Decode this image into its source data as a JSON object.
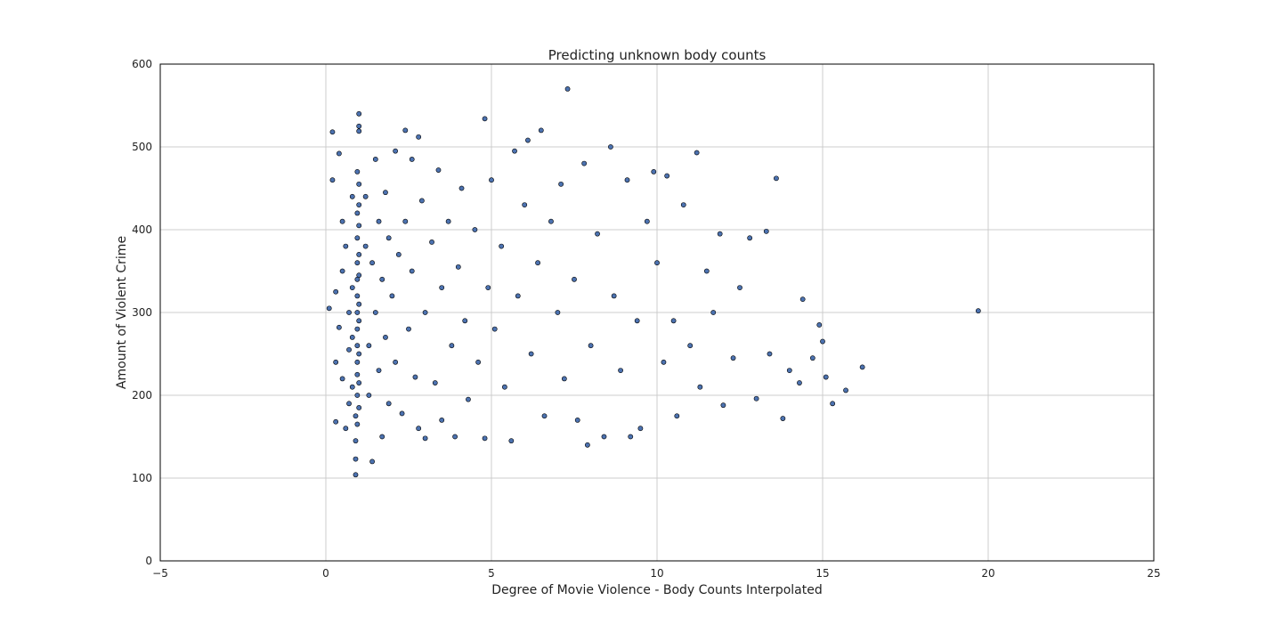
{
  "chart_data": {
    "type": "scatter",
    "title": "Predicting unknown body counts",
    "xlabel": "Degree of Movie Violence - Body Counts Interpolated",
    "ylabel": "Amount of Violent Crime",
    "xlim": [
      -5,
      25
    ],
    "ylim": [
      0,
      600
    ],
    "xticks": [
      -5,
      0,
      5,
      10,
      15,
      20,
      25
    ],
    "xtick_labels": [
      "−5",
      "0",
      "5",
      "10",
      "15",
      "20",
      "25"
    ],
    "yticks": [
      0,
      100,
      200,
      300,
      400,
      500,
      600
    ],
    "ytick_labels": [
      "0",
      "100",
      "200",
      "300",
      "400",
      "500",
      "600"
    ],
    "grid": true,
    "marker_color": "#4c72b0",
    "series": [
      {
        "points": [
          [
            0.1,
            305
          ],
          [
            0.2,
            518
          ],
          [
            0.2,
            460
          ],
          [
            0.3,
            240
          ],
          [
            0.3,
            325
          ],
          [
            0.3,
            168
          ],
          [
            0.4,
            492
          ],
          [
            0.4,
            282
          ],
          [
            0.5,
            410
          ],
          [
            0.5,
            350
          ],
          [
            0.5,
            220
          ],
          [
            0.6,
            160
          ],
          [
            0.6,
            380
          ],
          [
            0.7,
            300
          ],
          [
            0.7,
            255
          ],
          [
            0.7,
            190
          ],
          [
            0.8,
            440
          ],
          [
            0.8,
            330
          ],
          [
            0.8,
            270
          ],
          [
            0.8,
            210
          ],
          [
            0.9,
            175
          ],
          [
            0.9,
            145
          ],
          [
            0.9,
            123
          ],
          [
            0.9,
            104
          ],
          [
            0.95,
            470
          ],
          [
            0.95,
            420
          ],
          [
            0.95,
            390
          ],
          [
            0.95,
            360
          ],
          [
            0.95,
            340
          ],
          [
            0.95,
            320
          ],
          [
            0.95,
            300
          ],
          [
            0.95,
            280
          ],
          [
            0.95,
            260
          ],
          [
            0.95,
            240
          ],
          [
            0.95,
            225
          ],
          [
            0.95,
            200
          ],
          [
            0.95,
            165
          ],
          [
            1.0,
            540
          ],
          [
            1.0,
            525
          ],
          [
            1.0,
            519
          ],
          [
            1.0,
            455
          ],
          [
            1.0,
            430
          ],
          [
            1.0,
            405
          ],
          [
            1.0,
            370
          ],
          [
            1.0,
            345
          ],
          [
            1.0,
            310
          ],
          [
            1.0,
            290
          ],
          [
            1.0,
            250
          ],
          [
            1.0,
            215
          ],
          [
            1.0,
            185
          ],
          [
            1.2,
            440
          ],
          [
            1.2,
            380
          ],
          [
            1.3,
            260
          ],
          [
            1.3,
            200
          ],
          [
            1.4,
            360
          ],
          [
            1.4,
            120
          ],
          [
            1.5,
            485
          ],
          [
            1.5,
            300
          ],
          [
            1.6,
            410
          ],
          [
            1.6,
            230
          ],
          [
            1.7,
            340
          ],
          [
            1.7,
            150
          ],
          [
            1.8,
            445
          ],
          [
            1.8,
            270
          ],
          [
            1.9,
            390
          ],
          [
            1.9,
            190
          ],
          [
            2.0,
            320
          ],
          [
            2.1,
            495
          ],
          [
            2.1,
            240
          ],
          [
            2.2,
            370
          ],
          [
            2.3,
            178
          ],
          [
            2.4,
            520
          ],
          [
            2.4,
            410
          ],
          [
            2.5,
            280
          ],
          [
            2.6,
            485
          ],
          [
            2.6,
            350
          ],
          [
            2.7,
            222
          ],
          [
            2.8,
            512
          ],
          [
            2.8,
            160
          ],
          [
            2.9,
            435
          ],
          [
            3.0,
            300
          ],
          [
            3.0,
            148
          ],
          [
            3.2,
            385
          ],
          [
            3.3,
            215
          ],
          [
            3.4,
            472
          ],
          [
            3.5,
            330
          ],
          [
            3.5,
            170
          ],
          [
            3.7,
            410
          ],
          [
            3.8,
            260
          ],
          [
            3.9,
            150
          ],
          [
            4.0,
            355
          ],
          [
            4.1,
            450
          ],
          [
            4.2,
            290
          ],
          [
            4.3,
            195
          ],
          [
            4.5,
            400
          ],
          [
            4.6,
            240
          ],
          [
            4.8,
            534
          ],
          [
            4.8,
            148
          ],
          [
            4.9,
            330
          ],
          [
            5.0,
            460
          ],
          [
            5.1,
            280
          ],
          [
            5.3,
            380
          ],
          [
            5.4,
            210
          ],
          [
            5.6,
            145
          ],
          [
            5.7,
            495
          ],
          [
            5.8,
            320
          ],
          [
            6.0,
            430
          ],
          [
            6.1,
            508
          ],
          [
            6.2,
            250
          ],
          [
            6.4,
            360
          ],
          [
            6.5,
            520
          ],
          [
            6.6,
            175
          ],
          [
            6.8,
            410
          ],
          [
            7.0,
            300
          ],
          [
            7.1,
            455
          ],
          [
            7.2,
            220
          ],
          [
            7.3,
            570
          ],
          [
            7.5,
            340
          ],
          [
            7.6,
            170
          ],
          [
            7.8,
            480
          ],
          [
            7.9,
            140
          ],
          [
            8.0,
            260
          ],
          [
            8.2,
            395
          ],
          [
            8.4,
            150
          ],
          [
            8.6,
            500
          ],
          [
            8.7,
            320
          ],
          [
            8.9,
            230
          ],
          [
            9.1,
            460
          ],
          [
            9.2,
            150
          ],
          [
            9.4,
            290
          ],
          [
            9.5,
            160
          ],
          [
            9.7,
            410
          ],
          [
            9.9,
            470
          ],
          [
            10.0,
            360
          ],
          [
            10.2,
            240
          ],
          [
            10.3,
            465
          ],
          [
            10.5,
            290
          ],
          [
            10.6,
            175
          ],
          [
            10.8,
            430
          ],
          [
            11.0,
            260
          ],
          [
            11.2,
            493
          ],
          [
            11.3,
            210
          ],
          [
            11.5,
            350
          ],
          [
            11.7,
            300
          ],
          [
            11.9,
            395
          ],
          [
            12.0,
            188
          ],
          [
            12.3,
            245
          ],
          [
            12.5,
            330
          ],
          [
            12.8,
            390
          ],
          [
            13.0,
            196
          ],
          [
            13.3,
            398
          ],
          [
            13.4,
            250
          ],
          [
            13.6,
            462
          ],
          [
            13.8,
            172
          ],
          [
            14.0,
            230
          ],
          [
            14.3,
            215
          ],
          [
            14.4,
            316
          ],
          [
            14.7,
            245
          ],
          [
            14.9,
            285
          ],
          [
            15.0,
            265
          ],
          [
            15.1,
            222
          ],
          [
            15.3,
            190
          ],
          [
            15.7,
            206
          ],
          [
            16.2,
            234
          ],
          [
            19.7,
            302
          ]
        ]
      }
    ]
  }
}
